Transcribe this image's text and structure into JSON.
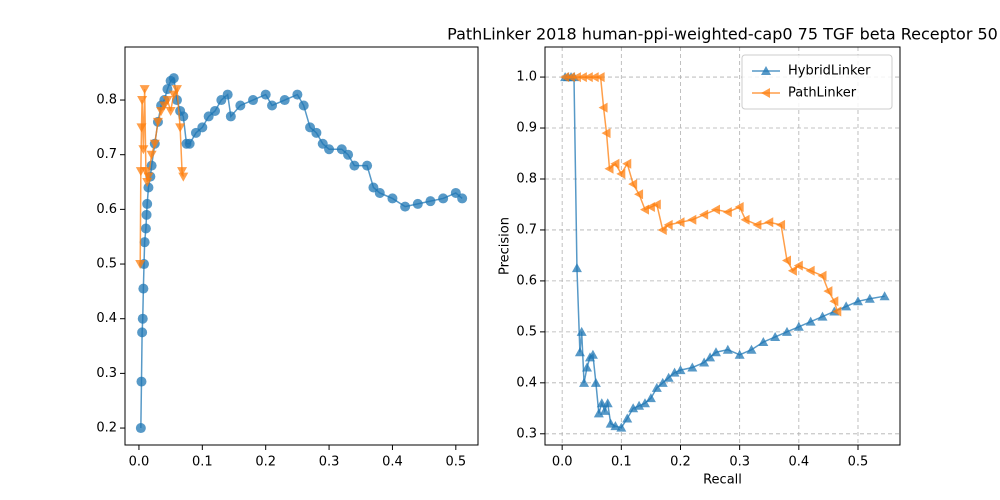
{
  "chart_data": [
    {
      "type": "line",
      "xlim": [
        -0.022,
        0.535
      ],
      "ylim": [
        0.169,
        0.897
      ],
      "xticks": [
        {
          "value": 0,
          "label": "0.0"
        },
        0.1,
        0.2,
        0.3,
        0.4,
        0.5
      ],
      "yticks": [
        0.2,
        0.3,
        0.4,
        0.5,
        0.6,
        0.7,
        0.8
      ],
      "grid": false,
      "series": [
        {
          "color": "#1f77b4",
          "marker": "o",
          "x": [
            0.003,
            0.004,
            0.005,
            0.006,
            0.007,
            0.008,
            0.009,
            0.011,
            0.012,
            0.013,
            0.015,
            0.018,
            0.02,
            0.025,
            0.03,
            0.035,
            0.04,
            0.045,
            0.05,
            0.055,
            0.06,
            0.065,
            0.07,
            0.075,
            0.08,
            0.09,
            0.1,
            0.11,
            0.12,
            0.13,
            0.14,
            0.145,
            0.16,
            0.18,
            0.2,
            0.21,
            0.23,
            0.25,
            0.26,
            0.27,
            0.28,
            0.29,
            0.3,
            0.32,
            0.33,
            0.34,
            0.36,
            0.37,
            0.38,
            0.4,
            0.42,
            0.44,
            0.46,
            0.48,
            0.5,
            0.51
          ],
          "values": [
            0.2,
            0.285,
            0.375,
            0.4,
            0.455,
            0.5,
            0.54,
            0.565,
            0.59,
            0.61,
            0.64,
            0.66,
            0.68,
            0.72,
            0.76,
            0.79,
            0.8,
            0.82,
            0.835,
            0.84,
            0.8,
            0.78,
            0.77,
            0.72,
            0.72,
            0.74,
            0.75,
            0.77,
            0.78,
            0.8,
            0.81,
            0.77,
            0.79,
            0.8,
            0.81,
            0.79,
            0.8,
            0.81,
            0.79,
            0.75,
            0.74,
            0.72,
            0.71,
            0.71,
            0.7,
            0.68,
            0.68,
            0.64,
            0.63,
            0.62,
            0.605,
            0.61,
            0.615,
            0.62,
            0.63,
            0.62
          ]
        },
        {
          "color": "#ff7f0e",
          "marker": "v",
          "x": [
            0.002,
            0.003,
            0.004,
            0.005,
            0.007,
            0.009,
            0.011,
            0.013,
            0.015,
            0.02,
            0.025,
            0.03,
            0.035,
            0.04,
            0.045,
            0.05,
            0.055,
            0.06,
            0.065,
            0.068,
            0.07
          ],
          "values": [
            0.5,
            0.67,
            0.75,
            0.8,
            0.71,
            0.82,
            0.67,
            0.65,
            0.66,
            0.7,
            0.72,
            0.76,
            0.78,
            0.79,
            0.8,
            0.78,
            0.81,
            0.82,
            0.75,
            0.67,
            0.66
          ]
        }
      ]
    },
    {
      "type": "line",
      "title": "PathLinker 2018 human-ppi-weighted-cap0 75 TGF beta Receptor 50",
      "x_label": "Recall",
      "y_label": "Precision",
      "xlim": [
        -0.029,
        0.571
      ],
      "ylim": [
        0.278,
        1.059
      ],
      "xticks": [
        {
          "value": 0,
          "label": "0.0"
        },
        0.1,
        0.2,
        0.3,
        0.4,
        0.5
      ],
      "yticks": [
        0.3,
        0.4,
        0.5,
        0.6,
        0.7,
        0.8,
        0.9,
        {
          "value": 1,
          "label": "1.0"
        }
      ],
      "grid": true,
      "legend": "upper right",
      "series": [
        {
          "name": "HybridLinker",
          "color": "#1f77b4",
          "marker": "^",
          "x": [
            0.005,
            0.01,
            0.015,
            0.02,
            0.025,
            0.03,
            0.033,
            0.037,
            0.042,
            0.047,
            0.052,
            0.057,
            0.062,
            0.067,
            0.072,
            0.077,
            0.082,
            0.09,
            0.1,
            0.11,
            0.12,
            0.13,
            0.14,
            0.15,
            0.16,
            0.17,
            0.18,
            0.19,
            0.2,
            0.22,
            0.24,
            0.25,
            0.26,
            0.28,
            0.3,
            0.32,
            0.34,
            0.36,
            0.38,
            0.4,
            0.42,
            0.44,
            0.46,
            0.48,
            0.5,
            0.52,
            0.545
          ],
          "values": [
            1,
            1,
            1,
            1,
            0.625,
            0.46,
            0.5,
            0.4,
            0.43,
            0.45,
            0.455,
            0.4,
            0.34,
            0.36,
            0.345,
            0.36,
            0.32,
            0.315,
            0.312,
            0.33,
            0.35,
            0.355,
            0.36,
            0.37,
            0.39,
            0.4,
            0.41,
            0.42,
            0.425,
            0.43,
            0.44,
            0.45,
            0.46,
            0.465,
            0.455,
            0.465,
            0.48,
            0.49,
            0.5,
            0.51,
            0.52,
            0.53,
            0.54,
            0.55,
            0.56,
            0.565,
            0.57
          ]
        },
        {
          "name": "PathLinker",
          "color": "#ff7f0e",
          "marker": "<",
          "x": [
            0.005,
            0.015,
            0.025,
            0.035,
            0.045,
            0.055,
            0.065,
            0.07,
            0.075,
            0.08,
            0.09,
            0.1,
            0.11,
            0.12,
            0.13,
            0.14,
            0.15,
            0.16,
            0.17,
            0.18,
            0.2,
            0.22,
            0.24,
            0.26,
            0.28,
            0.3,
            0.31,
            0.33,
            0.35,
            0.37,
            0.38,
            0.39,
            0.4,
            0.42,
            0.44,
            0.45,
            0.46,
            0.465
          ],
          "values": [
            1,
            1,
            1,
            1,
            1,
            1,
            1,
            0.94,
            0.89,
            0.82,
            0.83,
            0.81,
            0.83,
            0.79,
            0.77,
            0.74,
            0.745,
            0.75,
            0.7,
            0.71,
            0.715,
            0.72,
            0.73,
            0.74,
            0.735,
            0.745,
            0.72,
            0.71,
            0.715,
            0.71,
            0.64,
            0.62,
            0.63,
            0.62,
            0.61,
            0.58,
            0.56,
            0.54
          ]
        }
      ]
    }
  ]
}
